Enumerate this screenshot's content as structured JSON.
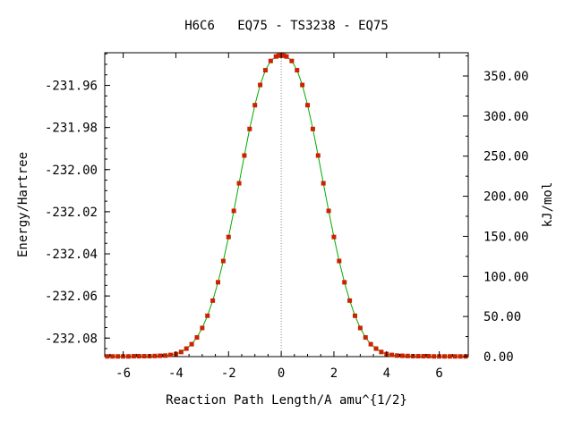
{
  "chart_data": {
    "type": "line",
    "title": "H6C6   EQ75 - TS3238 - EQ75",
    "xlabel": "Reaction Path Length/A amu^{1/2}",
    "ylabel_left": "Energy/Hartree",
    "ylabel_right": "kJ/mol",
    "xlim": [
      -6.7,
      7.1
    ],
    "ylim_left": [
      -232.0888,
      -231.9445
    ],
    "ylim_right": [
      0,
      379
    ],
    "x_ticks": [
      -6,
      -4,
      -2,
      0,
      2,
      4,
      6
    ],
    "x_tick_labels": [
      "-6",
      "-4",
      "-2",
      "0",
      "2",
      "4",
      "6"
    ],
    "y_left_ticks": [
      -231.96,
      -231.98,
      -232.0,
      -232.02,
      -232.04,
      -232.06,
      -232.08
    ],
    "y_left_tick_labels": [
      "-231.96",
      "-231.98",
      "-232.00",
      "-232.02",
      "-232.04",
      "-232.06",
      "-232.08"
    ],
    "y_right_ticks": [
      350,
      300,
      250,
      200,
      150,
      100,
      50,
      0
    ],
    "y_right_tick_labels": [
      "350.00",
      "300.00",
      "250.00",
      "200.00",
      "150.00",
      "100.00",
      "50.00",
      "0.00"
    ],
    "ts_marker_x": 0,
    "series": [
      {
        "line_color": "#00aa00",
        "point_color": "#cc2200",
        "x": [
          -6.6,
          -6.4,
          -6.2,
          -6.0,
          -5.8,
          -5.6,
          -5.4,
          -5.2,
          -5.0,
          -4.8,
          -4.6,
          -4.4,
          -4.2,
          -4.0,
          -3.8,
          -3.6,
          -3.4,
          -3.2,
          -3.0,
          -2.8,
          -2.6,
          -2.4,
          -2.2,
          -2.0,
          -1.8,
          -1.6,
          -1.4,
          -1.2,
          -1.0,
          -0.8,
          -0.6,
          -0.4,
          -0.2,
          -0.1,
          0.0,
          0.1,
          0.2,
          0.4,
          0.6,
          0.8,
          1.0,
          1.2,
          1.4,
          1.6,
          1.8,
          2.0,
          2.2,
          2.4,
          2.6,
          2.8,
          3.0,
          3.2,
          3.4,
          3.6,
          3.8,
          4.0,
          4.2,
          4.4,
          4.6,
          4.8,
          5.0,
          5.2,
          5.4,
          5.6,
          5.8,
          6.0,
          6.2,
          6.4,
          6.6,
          6.8,
          7.0
        ],
        "y": [
          -232.0887,
          -232.0887,
          -232.0887,
          -232.0887,
          -232.0887,
          -232.0886,
          -232.0886,
          -232.0886,
          -232.0886,
          -232.0885,
          -232.0884,
          -232.0883,
          -232.088,
          -232.0876,
          -232.0866,
          -232.085,
          -232.0829,
          -232.0797,
          -232.0752,
          -232.0694,
          -232.0622,
          -232.0535,
          -232.0434,
          -232.032,
          -232.0196,
          -232.0065,
          -231.9933,
          -231.9807,
          -231.9694,
          -231.9598,
          -231.9528,
          -231.9484,
          -231.9463,
          -231.9459,
          -231.9458,
          -231.9459,
          -231.9463,
          -231.9484,
          -231.9528,
          -231.9598,
          -231.9694,
          -231.9807,
          -231.9933,
          -232.0065,
          -232.0196,
          -232.032,
          -232.0434,
          -232.0535,
          -232.0622,
          -232.0694,
          -232.0752,
          -232.0797,
          -232.0829,
          -232.085,
          -232.0866,
          -232.0876,
          -232.088,
          -232.0883,
          -232.0884,
          -232.0885,
          -232.0886,
          -232.0886,
          -232.0886,
          -232.0886,
          -232.0887,
          -232.0887,
          -232.0887,
          -232.0887,
          -232.0887,
          -232.0887,
          -232.0887
        ]
      }
    ]
  }
}
